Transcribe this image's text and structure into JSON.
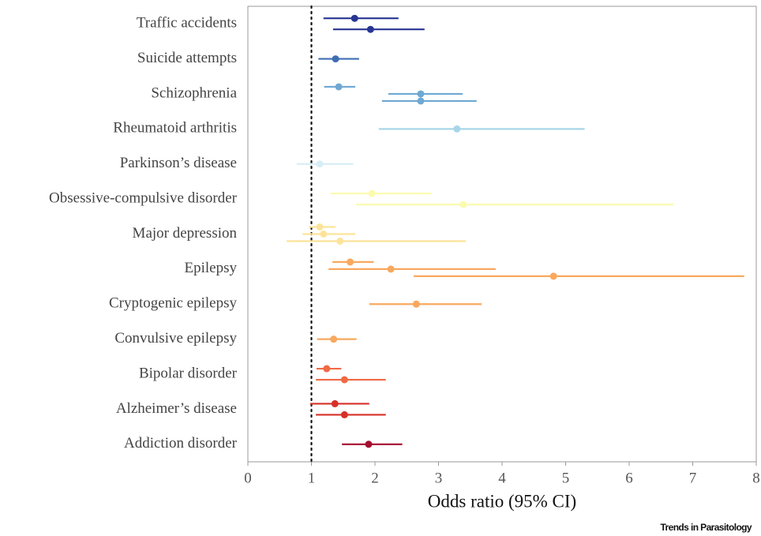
{
  "chart_data": {
    "type": "forest",
    "xlabel": "Odds ratio (95% CI)",
    "source": "Trends in Parasitology",
    "xlim": [
      0,
      8
    ],
    "xticks": [
      0,
      1,
      2,
      3,
      4,
      5,
      6,
      7,
      8
    ],
    "reference_line": 1,
    "rows": [
      {
        "label": "Traffic accidents",
        "color": "#283593",
        "estimates": [
          {
            "value": 1.68,
            "ci": [
              1.19,
              2.37
            ]
          },
          {
            "value": 1.93,
            "ci": [
              1.34,
              2.78
            ]
          }
        ]
      },
      {
        "label": "Suicide attempts",
        "color": "#3f6db3",
        "estimates": [
          {
            "value": 1.38,
            "ci": [
              1.11,
              1.75
            ]
          }
        ]
      },
      {
        "label": "Schizophrenia",
        "color": "#6fa8d2",
        "estimates": [
          {
            "value": 1.43,
            "ci": [
              1.2,
              1.69
            ]
          },
          {
            "value": 2.72,
            "ci": [
              2.21,
              3.38
            ]
          },
          {
            "value": 2.72,
            "ci": [
              2.11,
              3.6
            ]
          }
        ]
      },
      {
        "label": "Rheumatoid arthritis",
        "color": "#a8d6e8",
        "estimates": [
          {
            "value": 3.29,
            "ci": [
              2.06,
              5.3
            ]
          }
        ]
      },
      {
        "label": "Parkinson’s disease",
        "color": "#d8edf6",
        "estimates": [
          {
            "value": 1.13,
            "ci": [
              0.77,
              1.66
            ]
          }
        ]
      },
      {
        "label": "Obsessive-compulsive disorder",
        "color": "#fbfbb0",
        "estimates": [
          {
            "value": 1.95,
            "ci": [
              1.3,
              2.89
            ]
          },
          {
            "value": 3.39,
            "ci": [
              1.7,
              6.7
            ]
          }
        ]
      },
      {
        "label": "Major depression",
        "color": "#fde39a",
        "estimates": [
          {
            "value": 1.13,
            "ci": [
              0.96,
              1.38
            ]
          },
          {
            "value": 1.19,
            "ci": [
              0.86,
              1.69
            ]
          },
          {
            "value": 1.45,
            "ci": [
              0.61,
              3.43
            ]
          }
        ]
      },
      {
        "label": "Epilepsy",
        "color": "#f9a85e",
        "estimates": [
          {
            "value": 1.61,
            "ci": [
              1.33,
              1.98
            ]
          },
          {
            "value": 2.25,
            "ci": [
              1.27,
              3.9
            ]
          },
          {
            "value": 4.81,
            "ci": [
              2.61,
              7.81
            ]
          }
        ]
      },
      {
        "label": "Cryptogenic epilepsy",
        "color": "#f9a85e",
        "estimates": [
          {
            "value": 2.65,
            "ci": [
              1.91,
              3.68
            ]
          }
        ]
      },
      {
        "label": "Convulsive epilepsy",
        "color": "#f9a85e",
        "estimates": [
          {
            "value": 1.35,
            "ci": [
              1.09,
              1.71
            ]
          }
        ]
      },
      {
        "label": "Bipolar disorder",
        "color": "#ef6a45",
        "estimates": [
          {
            "value": 1.24,
            "ci": [
              1.08,
              1.47
            ]
          },
          {
            "value": 1.52,
            "ci": [
              1.07,
              2.17
            ]
          }
        ]
      },
      {
        "label": "Alzheimer’s disease",
        "color": "#d73027",
        "estimates": [
          {
            "value": 1.37,
            "ci": [
              0.98,
              1.91
            ]
          },
          {
            "value": 1.52,
            "ci": [
              1.07,
              2.17
            ]
          }
        ]
      },
      {
        "label": "Addiction disorder",
        "color": "#a50f2f",
        "estimates": [
          {
            "value": 1.9,
            "ci": [
              1.48,
              2.43
            ]
          }
        ]
      }
    ]
  }
}
